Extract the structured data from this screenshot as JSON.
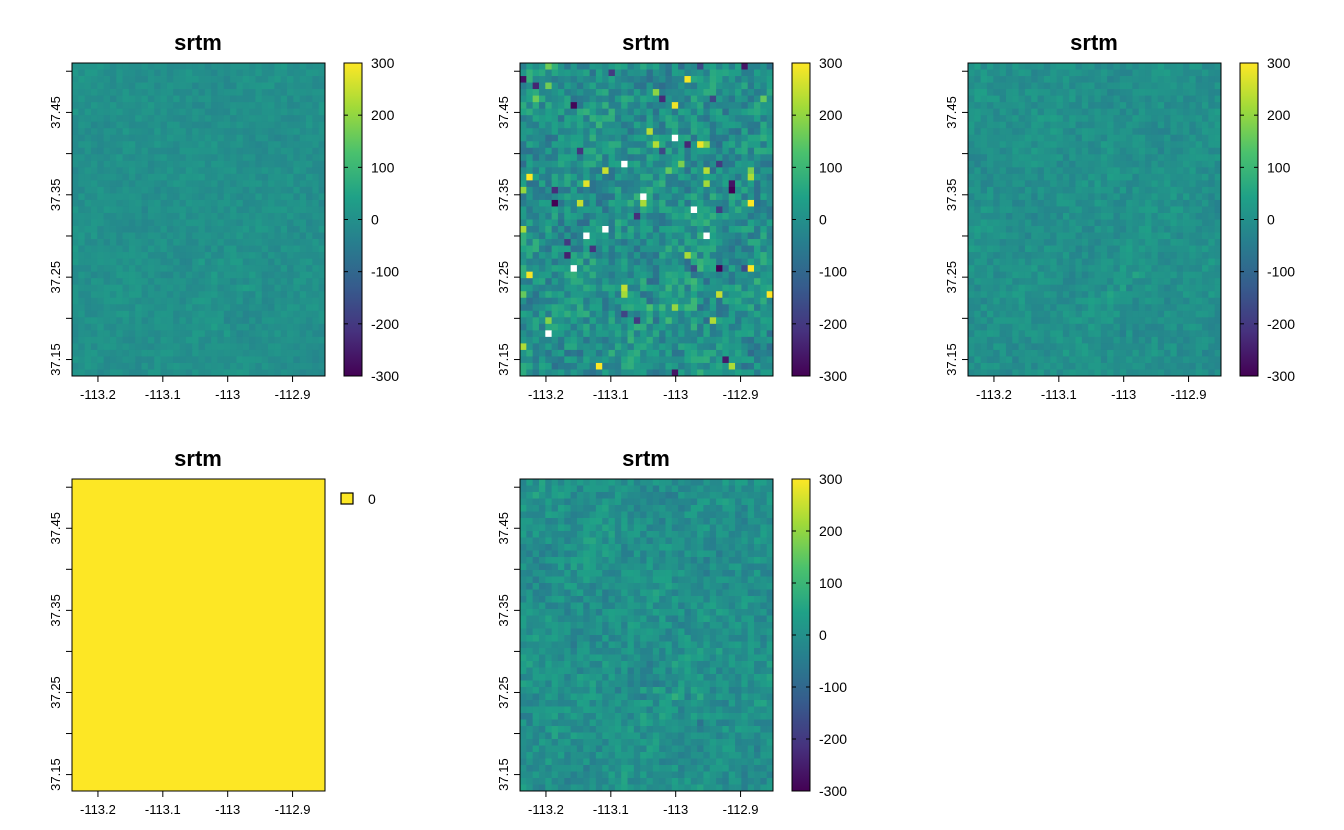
{
  "palette": [
    "#440154",
    "#46327e",
    "#365c8d",
    "#277f8e",
    "#1fa187",
    "#4ac16d",
    "#a0da39",
    "#fde725"
  ],
  "chart_data": [
    {
      "type": "heatmap",
      "title": "srtm",
      "x_ticks": [
        -113.2,
        -113.1,
        -113,
        -112.9
      ],
      "x_tick_labels": [
        "-113.2",
        "-113.1",
        "-113",
        "-112.9"
      ],
      "y_ticks": [
        37.45,
        37.35,
        37.25,
        37.15
      ],
      "y_tick_labels": [
        "37.45",
        "37.35",
        "37.25",
        "37.15"
      ],
      "xlim": [
        -113.24,
        -112.85
      ],
      "ylim": [
        37.13,
        37.51
      ],
      "legend": {
        "type": "continuous",
        "range": [
          -300,
          300
        ],
        "labels": [
          "300",
          "200",
          "100",
          "0",
          "-100",
          "-200",
          "-300"
        ]
      },
      "grid": {
        "cols": 40,
        "rows": 48,
        "seed": 11,
        "noise": 22,
        "outliers": 0
      }
    },
    {
      "type": "heatmap",
      "title": "srtm",
      "x_ticks": [
        -113.2,
        -113.1,
        -113,
        -112.9
      ],
      "x_tick_labels": [
        "-113.2",
        "-113.1",
        "-113",
        "-112.9"
      ],
      "y_ticks": [
        37.45,
        37.35,
        37.25,
        37.15
      ],
      "y_tick_labels": [
        "37.45",
        "37.35",
        "37.25",
        "37.15"
      ],
      "xlim": [
        -113.24,
        -112.85
      ],
      "ylim": [
        37.13,
        37.51
      ],
      "legend": {
        "type": "continuous",
        "range": [
          -300,
          300
        ],
        "labels": [
          "300",
          "200",
          "100",
          "0",
          "-100",
          "-200",
          "-300"
        ]
      },
      "grid": {
        "cols": 40,
        "rows": 48,
        "seed": 23,
        "noise": 70,
        "outliers": 0.03
      }
    },
    {
      "type": "heatmap",
      "title": "srtm",
      "x_ticks": [
        -113.2,
        -113.1,
        -113,
        -112.9
      ],
      "x_tick_labels": [
        "-113.2",
        "-113.1",
        "-113",
        "-112.9"
      ],
      "y_ticks": [
        37.45,
        37.35,
        37.25,
        37.15
      ],
      "y_tick_labels": [
        "37.45",
        "37.35",
        "37.25",
        "37.15"
      ],
      "xlim": [
        -113.24,
        -112.85
      ],
      "ylim": [
        37.13,
        37.51
      ],
      "legend": {
        "type": "continuous",
        "range": [
          -300,
          300
        ],
        "labels": [
          "300",
          "200",
          "100",
          "0",
          "-100",
          "-200",
          "-300"
        ]
      },
      "grid": {
        "cols": 40,
        "rows": 48,
        "seed": 37,
        "noise": 30,
        "outliers": 0
      }
    },
    {
      "type": "heatmap",
      "title": "srtm",
      "x_ticks": [
        -113.2,
        -113.1,
        -113,
        -112.9
      ],
      "x_tick_labels": [
        "-113.2",
        "-113.1",
        "-113",
        "-112.9"
      ],
      "y_ticks": [
        37.45,
        37.35,
        37.25,
        37.15
      ],
      "y_tick_labels": [
        "37.45",
        "37.35",
        "37.25",
        "37.15"
      ],
      "xlim": [
        -113.24,
        -112.85
      ],
      "ylim": [
        37.13,
        37.51
      ],
      "legend": {
        "type": "categorical",
        "categories": [
          {
            "label": "0",
            "color": "#fde725"
          }
        ]
      },
      "fill_value": 0,
      "fill_color": "#fde725"
    },
    {
      "type": "heatmap",
      "title": "srtm",
      "x_ticks": [
        -113.2,
        -113.1,
        -113,
        -112.9
      ],
      "x_tick_labels": [
        "-113.2",
        "-113.1",
        "-113",
        "-112.9"
      ],
      "y_ticks": [
        37.45,
        37.35,
        37.25,
        37.15
      ],
      "y_tick_labels": [
        "37.45",
        "37.35",
        "37.25",
        "37.15"
      ],
      "xlim": [
        -113.24,
        -112.85
      ],
      "ylim": [
        37.13,
        37.51
      ],
      "legend": {
        "type": "continuous",
        "range": [
          -300,
          300
        ],
        "labels": [
          "300",
          "200",
          "100",
          "0",
          "-100",
          "-200",
          "-300"
        ]
      },
      "grid": {
        "cols": 40,
        "rows": 48,
        "seed": 53,
        "noise": 45,
        "outliers": 0
      }
    }
  ]
}
